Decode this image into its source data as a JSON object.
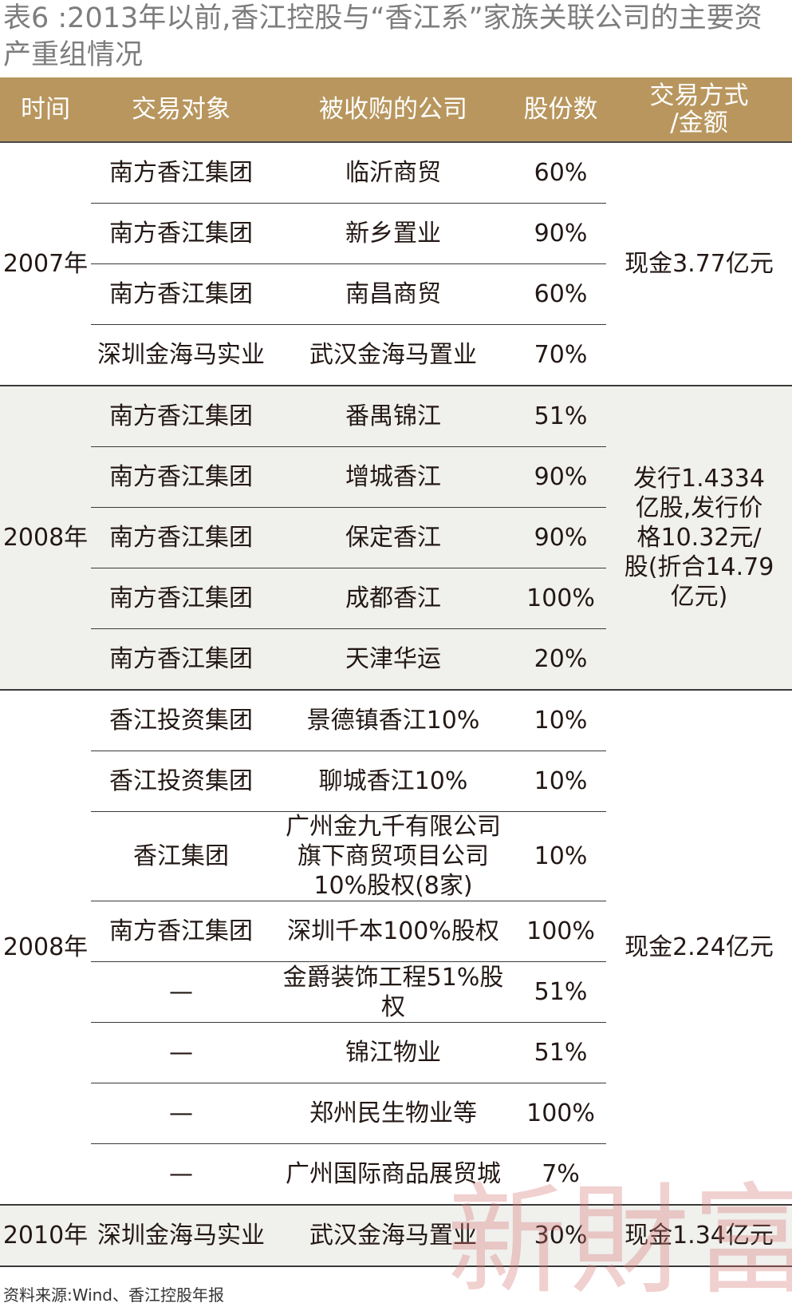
{
  "title": "表6 :2013年以前,香江控股与“香江系”家族关联公司的主要资产重组情况",
  "headers": {
    "time": "时间",
    "counterparty": "交易对象",
    "acquired": "被收购的公司",
    "shares": "股份数",
    "method_line1": "交易方式",
    "method_line2": "/金额"
  },
  "groups": [
    {
      "year": "2007年",
      "method": "现金3.77亿元",
      "rows": [
        {
          "counterparty": "南方香江集团",
          "acquired": "临沂商贸",
          "shares": "60%"
        },
        {
          "counterparty": "南方香江集团",
          "acquired": "新乡置业",
          "shares": "90%"
        },
        {
          "counterparty": "南方香江集团",
          "acquired": "南昌商贸",
          "shares": "60%"
        },
        {
          "counterparty": "深圳金海马实业",
          "acquired": "武汉金海马置业",
          "shares": "70%"
        }
      ]
    },
    {
      "year": "2008年",
      "method_lines": [
        "发行1.4334",
        "亿股,发行价",
        "格10.32元/",
        "股(折合14.79",
        "亿元)"
      ],
      "rows": [
        {
          "counterparty": "南方香江集团",
          "acquired": "番禺锦江",
          "shares": "51%"
        },
        {
          "counterparty": "南方香江集团",
          "acquired": "增城香江",
          "shares": "90%"
        },
        {
          "counterparty": "南方香江集团",
          "acquired": "保定香江",
          "shares": "90%"
        },
        {
          "counterparty": "南方香江集团",
          "acquired": "成都香江",
          "shares": "100%"
        },
        {
          "counterparty": "南方香江集团",
          "acquired": "天津华运",
          "shares": "20%"
        }
      ]
    },
    {
      "year": "2008年",
      "method": "现金2.24亿元",
      "rows": [
        {
          "counterparty": "香江投资集团",
          "acquired": "景德镇香江10%",
          "shares": "10%"
        },
        {
          "counterparty": "香江投资集团",
          "acquired": "聊城香江10%",
          "shares": "10%"
        },
        {
          "counterparty": "香江集团",
          "acquired_lines": [
            "广州金九千有限公司",
            "旗下商贸项目公司",
            "10%股权(8家)"
          ],
          "shares": "10%"
        },
        {
          "counterparty": "南方香江集团",
          "acquired": "深圳千本100%股权",
          "shares": "100%"
        },
        {
          "counterparty": "—",
          "acquired": "金爵装饰工程51%股权",
          "shares": "51%"
        },
        {
          "counterparty": "—",
          "acquired": "锦江物业",
          "shares": "51%"
        },
        {
          "counterparty": "—",
          "acquired": "郑州民生物业等",
          "shares": "100%"
        },
        {
          "counterparty": "—",
          "acquired": "广州国际商品展贸城",
          "shares": "7%"
        }
      ]
    },
    {
      "year": "2010年",
      "method": "现金1.34亿元",
      "rows": [
        {
          "counterparty": "深圳金海马实业",
          "acquired": "武汉金海马置业",
          "shares": "30%"
        }
      ]
    }
  ],
  "source": "资料来源:Wind、香江控股年报",
  "watermark": "新財富"
}
